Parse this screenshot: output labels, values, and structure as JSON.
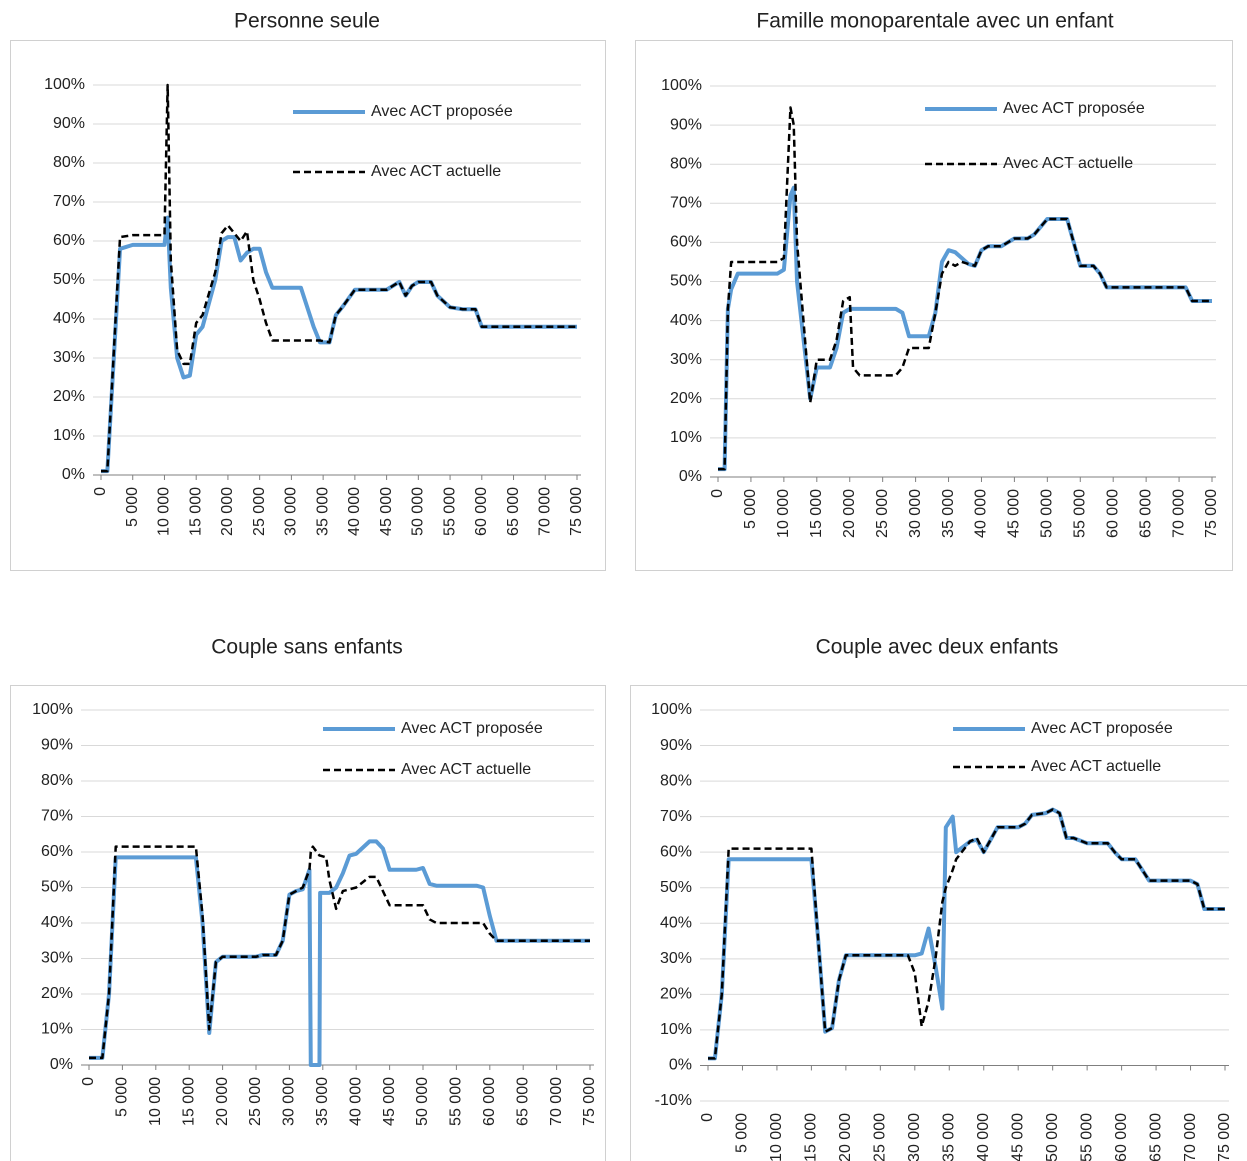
{
  "chart_data": [
    {
      "type": "line",
      "title": "Personne seule",
      "x": [
        0,
        1000,
        3000,
        5000,
        10000,
        10500,
        11000,
        12000,
        13000,
        14000,
        15000,
        16000,
        18000,
        19000,
        20000,
        21000,
        22000,
        23000,
        24000,
        25000,
        26000,
        27000,
        31500,
        33500,
        34500,
        36000,
        37000,
        38000,
        40000,
        45000,
        47000,
        48000,
        49000,
        50000,
        52000,
        53000,
        55000,
        57000,
        59000,
        60000,
        75000
      ],
      "xlim": [
        0,
        75000
      ],
      "xticks": [
        0,
        {
          "value": 5000,
          "label": "5 000"
        },
        {
          "value": 10000,
          "label": "10 000"
        },
        {
          "value": 15000,
          "label": "15 000"
        },
        {
          "value": 20000,
          "label": "20 000"
        },
        {
          "value": 25000,
          "label": "25 000"
        },
        {
          "value": 30000,
          "label": "30 000"
        },
        {
          "value": 35000,
          "label": "35 000"
        },
        {
          "value": 40000,
          "label": "40 000"
        },
        {
          "value": 45000,
          "label": "45 000"
        },
        {
          "value": 50000,
          "label": "50 000"
        },
        {
          "value": 55000,
          "label": "55 000"
        },
        {
          "value": 60000,
          "label": "60 000"
        },
        {
          "value": 65000,
          "label": "65 000"
        },
        {
          "value": 70000,
          "label": "70 000"
        },
        {
          "value": 75000,
          "label": "75 000"
        }
      ],
      "ylim": [
        0,
        100
      ],
      "yticks": [
        {
          "value": 0,
          "label": "0%"
        },
        {
          "value": 10,
          "label": "10%"
        },
        {
          "value": 20,
          "label": "20%"
        },
        {
          "value": 30,
          "label": "30%"
        },
        {
          "value": 40,
          "label": "40%"
        },
        {
          "value": 50,
          "label": "50%"
        },
        {
          "value": 60,
          "label": "60%"
        },
        {
          "value": 70,
          "label": "70%"
        },
        {
          "value": 80,
          "label": "80%"
        },
        {
          "value": 90,
          "label": "90%"
        },
        {
          "value": 100,
          "label": "100%"
        }
      ],
      "grid": true,
      "series": [
        {
          "name": "Avec ACT proposée",
          "color": "#5b9bd5",
          "dashed": false,
          "values": [
            1,
            1,
            58,
            59,
            59,
            66,
            48,
            30,
            25,
            25.5,
            36,
            38,
            50,
            60,
            61,
            61,
            55,
            57,
            58,
            58,
            52,
            48,
            48,
            38,
            34,
            34,
            41,
            43,
            47.5,
            47.5,
            49.5,
            46,
            48.5,
            49.5,
            49.5,
            46,
            43,
            42.5,
            42.5,
            38,
            38
          ]
        },
        {
          "name": "Avec ACT actuelle",
          "color": "#000000",
          "dashed": true,
          "values": [
            1,
            1,
            61,
            61.5,
            61.5,
            100,
            55,
            32,
            28.5,
            28.5,
            39,
            41,
            52,
            62,
            64,
            62,
            60,
            62.5,
            50,
            45,
            39,
            34.5,
            34.5,
            34.5,
            34.5,
            34,
            41,
            43,
            47.5,
            47.5,
            49.5,
            46,
            48.5,
            49.5,
            49.5,
            46,
            43,
            42.5,
            42.5,
            38,
            38
          ]
        }
      ]
    },
    {
      "type": "line",
      "title": "Famille monoparentale avec un enfant",
      "x": [
        0,
        1000,
        1500,
        2000,
        3000,
        9000,
        10000,
        11000,
        11500,
        12000,
        14000,
        15000,
        17000,
        18000,
        19000,
        20000,
        20500,
        21500,
        27000,
        28000,
        29000,
        32000,
        33000,
        34000,
        35000,
        36000,
        37000,
        38000,
        39000,
        40000,
        41000,
        43000,
        44000,
        45000,
        47000,
        48000,
        50000,
        53000,
        54000,
        55000,
        57000,
        58000,
        59000,
        71000,
        72000,
        75000
      ],
      "xlim": [
        0,
        75000
      ],
      "xticks": [
        0,
        {
          "value": 5000,
          "label": "5 000"
        },
        {
          "value": 10000,
          "label": "10 000"
        },
        {
          "value": 15000,
          "label": "15 000"
        },
        {
          "value": 20000,
          "label": "20 000"
        },
        {
          "value": 25000,
          "label": "25 000"
        },
        {
          "value": 30000,
          "label": "30 000"
        },
        {
          "value": 35000,
          "label": "35 000"
        },
        {
          "value": 40000,
          "label": "40 000"
        },
        {
          "value": 45000,
          "label": "45 000"
        },
        {
          "value": 50000,
          "label": "50 000"
        },
        {
          "value": 55000,
          "label": "55 000"
        },
        {
          "value": 60000,
          "label": "60 000"
        },
        {
          "value": 65000,
          "label": "65 000"
        },
        {
          "value": 70000,
          "label": "70 000"
        },
        {
          "value": 75000,
          "label": "75 000"
        }
      ],
      "ylim": [
        0,
        100
      ],
      "yticks": [
        {
          "value": 0,
          "label": "0%"
        },
        {
          "value": 10,
          "label": "10%"
        },
        {
          "value": 20,
          "label": "20%"
        },
        {
          "value": 30,
          "label": "30%"
        },
        {
          "value": 40,
          "label": "40%"
        },
        {
          "value": 50,
          "label": "50%"
        },
        {
          "value": 60,
          "label": "60%"
        },
        {
          "value": 70,
          "label": "70%"
        },
        {
          "value": 80,
          "label": "80%"
        },
        {
          "value": 90,
          "label": "90%"
        },
        {
          "value": 100,
          "label": "100%"
        }
      ],
      "grid": true,
      "series": [
        {
          "name": "Avec ACT proposée",
          "color": "#5b9bd5",
          "dashed": false,
          "values": [
            2,
            2,
            43,
            48,
            52,
            52,
            53,
            72,
            74,
            50,
            20,
            28,
            28,
            33,
            42,
            43,
            43,
            43,
            43,
            42,
            36,
            36,
            42,
            55,
            58,
            57.5,
            56,
            54.5,
            54,
            58,
            59,
            59,
            60,
            61,
            61,
            62,
            66,
            66,
            60,
            54,
            54,
            52,
            48.5,
            48.5,
            45,
            45
          ]
        },
        {
          "name": "Avec ACT actuelle",
          "color": "#000000",
          "dashed": true,
          "values": [
            2,
            2,
            43,
            55,
            55,
            55,
            56,
            94.5,
            90,
            60,
            19,
            30,
            30,
            35,
            45,
            46,
            28,
            26,
            26,
            28,
            33,
            33,
            42,
            52,
            55,
            54,
            55,
            54.5,
            54,
            58,
            59,
            59,
            60,
            61,
            61,
            62,
            66,
            66,
            60,
            54,
            54,
            52,
            48.5,
            48.5,
            45,
            45
          ]
        }
      ]
    },
    {
      "type": "line",
      "title": "Couple sans enfants",
      "x": [
        0,
        2000,
        3000,
        4000,
        16000,
        17000,
        18000,
        19000,
        20000,
        25000,
        26000,
        28000,
        29000,
        30000,
        31000,
        32000,
        33000,
        33200,
        33500,
        34500,
        34600,
        35500,
        36000,
        37000,
        38000,
        39000,
        40000,
        42000,
        43000,
        44000,
        45000,
        49000,
        50000,
        51000,
        52000,
        58000,
        59000,
        60000,
        61000,
        75000
      ],
      "xlim": [
        0,
        75000
      ],
      "xticks": [
        0,
        {
          "value": 5000,
          "label": "5 000"
        },
        {
          "value": 10000,
          "label": "10 000"
        },
        {
          "value": 15000,
          "label": "15 000"
        },
        {
          "value": 20000,
          "label": "20 000"
        },
        {
          "value": 25000,
          "label": "25 000"
        },
        {
          "value": 30000,
          "label": "30 000"
        },
        {
          "value": 35000,
          "label": "35 000"
        },
        {
          "value": 40000,
          "label": "40 000"
        },
        {
          "value": 45000,
          "label": "45 000"
        },
        {
          "value": 50000,
          "label": "50 000"
        },
        {
          "value": 55000,
          "label": "55 000"
        },
        {
          "value": 60000,
          "label": "60 000"
        },
        {
          "value": 65000,
          "label": "65 000"
        },
        {
          "value": 70000,
          "label": "70 000"
        },
        {
          "value": 75000,
          "label": "75 000"
        }
      ],
      "ylim": [
        0,
        100
      ],
      "yticks": [
        {
          "value": 0,
          "label": "0%"
        },
        {
          "value": 10,
          "label": "10%"
        },
        {
          "value": 20,
          "label": "20%"
        },
        {
          "value": 30,
          "label": "30%"
        },
        {
          "value": 40,
          "label": "40%"
        },
        {
          "value": 50,
          "label": "50%"
        },
        {
          "value": 60,
          "label": "60%"
        },
        {
          "value": 70,
          "label": "70%"
        },
        {
          "value": 80,
          "label": "80%"
        },
        {
          "value": 90,
          "label": "90%"
        },
        {
          "value": 100,
          "label": "100%"
        }
      ],
      "grid": true,
      "series": [
        {
          "name": "Avec ACT proposée",
          "color": "#5b9bd5",
          "dashed": false,
          "values": [
            2,
            2,
            20,
            58.5,
            58.5,
            40,
            9,
            29,
            30.5,
            30.5,
            31,
            31,
            35,
            48,
            49,
            49.5,
            55,
            0,
            0,
            0,
            48.5,
            48.5,
            48.5,
            50,
            54,
            59,
            59.5,
            63,
            63,
            61,
            55,
            55,
            55.5,
            51,
            50.5,
            50.5,
            50,
            42,
            35,
            35
          ]
        },
        {
          "name": "Avec ACT actuelle",
          "color": "#000000",
          "dashed": true,
          "values": [
            2,
            2,
            20,
            61.5,
            61.5,
            42,
            10,
            29,
            30.5,
            30.5,
            31,
            31,
            35,
            48,
            49,
            50,
            55,
            60,
            61.5,
            59,
            59,
            58.5,
            52,
            44,
            49,
            49.5,
            50,
            53,
            53,
            49,
            45,
            45,
            45,
            41,
            40,
            40,
            40,
            37,
            35,
            35
          ]
        }
      ]
    },
    {
      "type": "line",
      "title": "Couple avec deux enfants",
      "x": [
        0,
        1000,
        2000,
        3000,
        15000,
        16000,
        17000,
        18000,
        19000,
        20000,
        29000,
        30000,
        31000,
        32000,
        33000,
        34000,
        34500,
        35500,
        36000,
        38000,
        39000,
        40000,
        42000,
        45000,
        46000,
        47000,
        49000,
        50000,
        51000,
        52000,
        53000,
        55000,
        58000,
        59000,
        60000,
        62000,
        64000,
        70000,
        71000,
        72000,
        75000
      ],
      "xlim": [
        0,
        75000
      ],
      "xticks": [
        0,
        {
          "value": 5000,
          "label": "5 000"
        },
        {
          "value": 10000,
          "label": "10 000"
        },
        {
          "value": 15000,
          "label": "15 000"
        },
        {
          "value": 20000,
          "label": "20 000"
        },
        {
          "value": 25000,
          "label": "25 000"
        },
        {
          "value": 30000,
          "label": "30 000"
        },
        {
          "value": 35000,
          "label": "35 000"
        },
        {
          "value": 40000,
          "label": "40 000"
        },
        {
          "value": 45000,
          "label": "45 000"
        },
        {
          "value": 50000,
          "label": "50 000"
        },
        {
          "value": 55000,
          "label": "55 000"
        },
        {
          "value": 60000,
          "label": "60 000"
        },
        {
          "value": 65000,
          "label": "65 000"
        },
        {
          "value": 70000,
          "label": "70 000"
        },
        {
          "value": 75000,
          "label": "75 000"
        }
      ],
      "ylim": [
        -10,
        100
      ],
      "yticks": [
        {
          "value": -10,
          "label": "-10%"
        },
        {
          "value": 0,
          "label": "0%"
        },
        {
          "value": 10,
          "label": "10%"
        },
        {
          "value": 20,
          "label": "20%"
        },
        {
          "value": 30,
          "label": "30%"
        },
        {
          "value": 40,
          "label": "40%"
        },
        {
          "value": 50,
          "label": "50%"
        },
        {
          "value": 60,
          "label": "60%"
        },
        {
          "value": 70,
          "label": "70%"
        },
        {
          "value": 80,
          "label": "80%"
        },
        {
          "value": 90,
          "label": "90%"
        },
        {
          "value": 100,
          "label": "100%"
        }
      ],
      "grid": true,
      "series": [
        {
          "name": "Avec ACT proposée",
          "color": "#5b9bd5",
          "dashed": false,
          "values": [
            2,
            2,
            20,
            58,
            58,
            35,
            9.5,
            10.5,
            24,
            31,
            31,
            31,
            31.5,
            38.5,
            28,
            16,
            67,
            70,
            60,
            63,
            63.5,
            60,
            67,
            67,
            68,
            70.5,
            71,
            72,
            71,
            64,
            64,
            62.5,
            62.5,
            60,
            58,
            58,
            52,
            52,
            51,
            44,
            44
          ]
        },
        {
          "name": "Avec ACT actuelle",
          "color": "#000000",
          "dashed": true,
          "values": [
            2,
            2,
            20,
            61,
            61,
            35,
            9.5,
            10.5,
            24,
            31,
            31,
            26,
            11,
            18,
            30,
            46,
            50,
            55,
            58,
            63,
            64,
            60,
            67,
            67,
            68,
            70.5,
            71,
            72,
            71,
            64,
            64,
            62.5,
            62.5,
            60,
            58,
            58,
            52,
            52,
            51,
            44,
            44
          ]
        }
      ]
    }
  ]
}
